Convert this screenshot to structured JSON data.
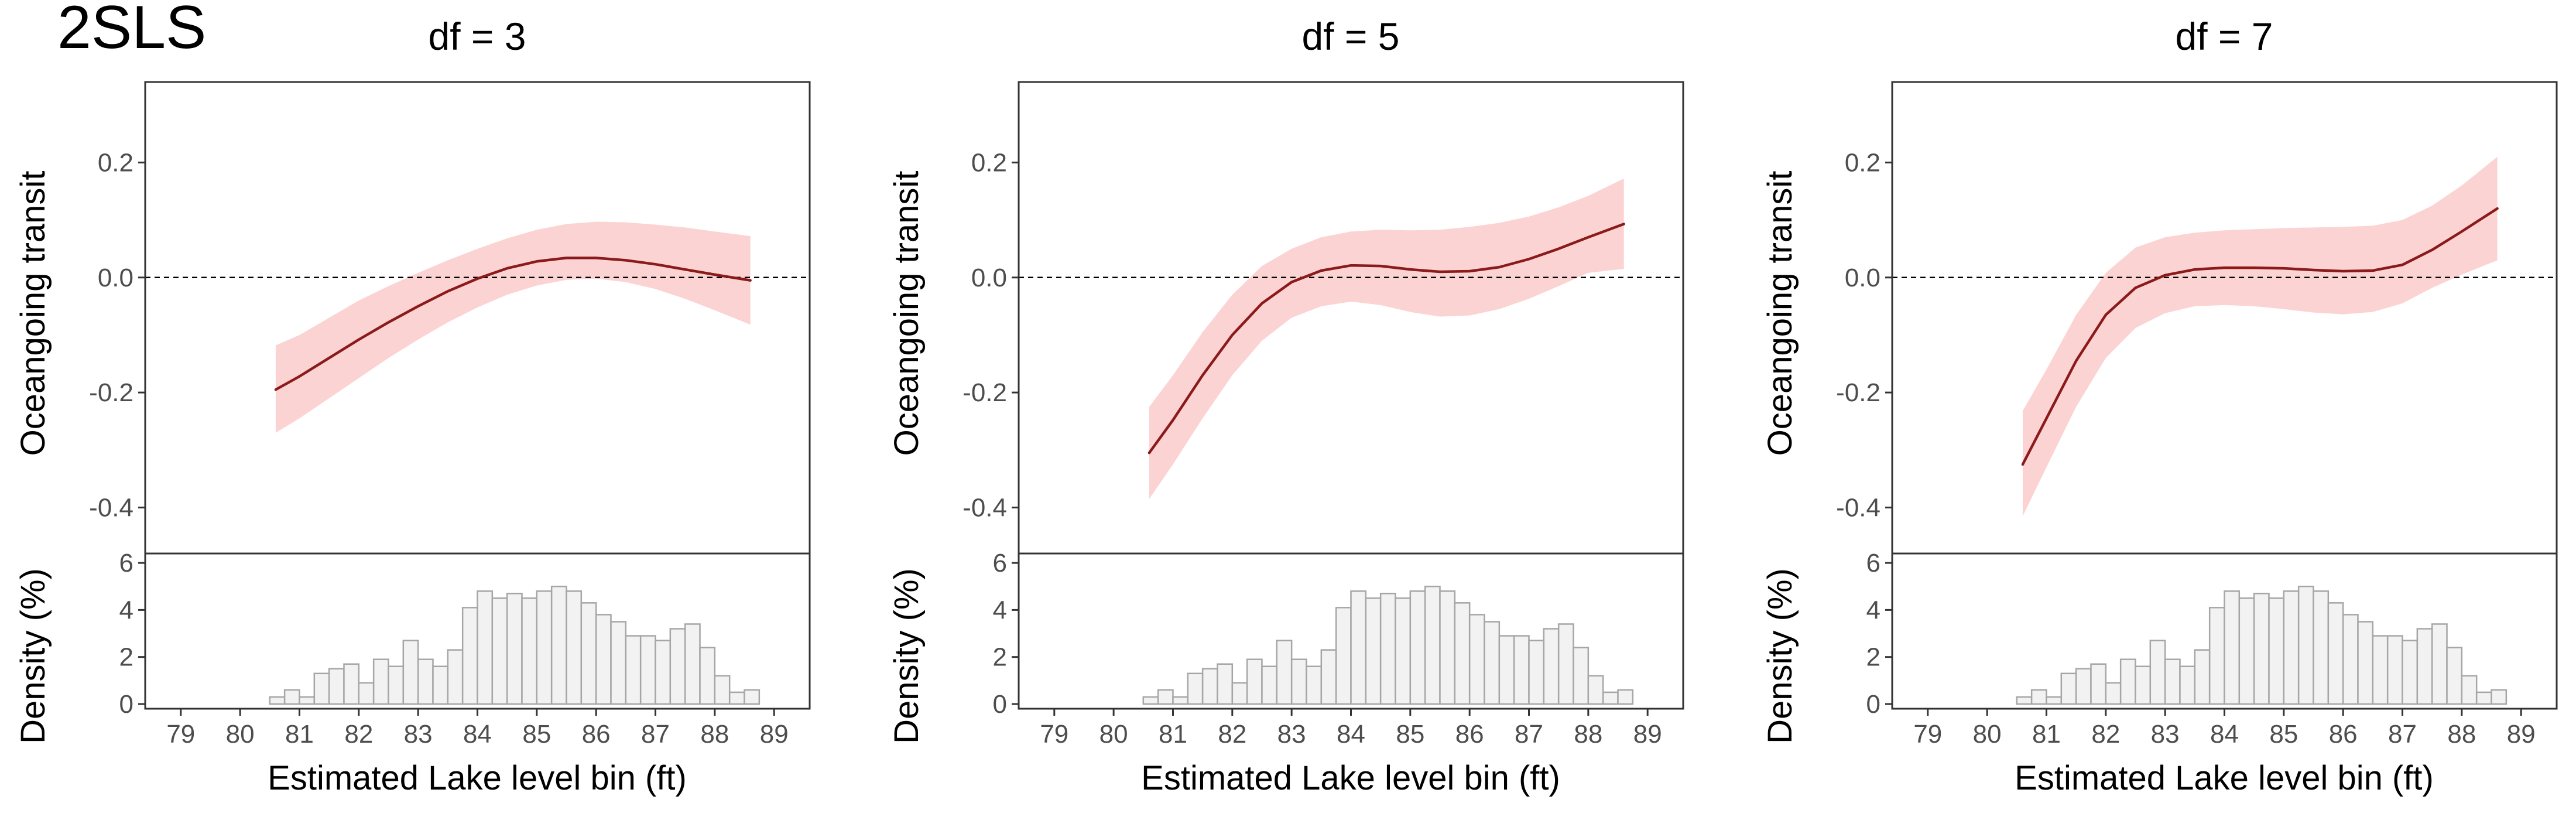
{
  "figure_tag": "2SLS",
  "chart_data": [
    {
      "type": "line",
      "title": "df = 3",
      "ylabel": "Oceangoing transit",
      "xlabel": "Estimated Lake level bin (ft)",
      "xlim": [
        78.4,
        89.6
      ],
      "ylim": [
        -0.48,
        0.34
      ],
      "y_ticks": [
        0.2,
        0.0,
        -0.2,
        -0.4
      ],
      "y_tick_labels": [
        "0.2",
        "0.0",
        "-0.2",
        "-0.4"
      ],
      "x_ticks": [
        79,
        80,
        81,
        82,
        83,
        84,
        85,
        86,
        87,
        88,
        89
      ],
      "reference_line": 0,
      "line_color": "#8b1a1a",
      "band_color": "#fcd3d3",
      "x": [
        80.6,
        81.0,
        81.5,
        82.0,
        82.5,
        83.0,
        83.5,
        84.0,
        84.5,
        85.0,
        85.5,
        86.0,
        86.5,
        87.0,
        87.5,
        88.0,
        88.6
      ],
      "fit": [
        -0.195,
        -0.172,
        -0.14,
        -0.108,
        -0.078,
        -0.05,
        -0.024,
        -0.002,
        0.016,
        0.028,
        0.034,
        0.034,
        0.03,
        0.023,
        0.014,
        0.005,
        -0.005
      ],
      "lower": [
        -0.27,
        -0.245,
        -0.21,
        -0.175,
        -0.14,
        -0.108,
        -0.078,
        -0.052,
        -0.03,
        -0.014,
        -0.004,
        -0.002,
        -0.008,
        -0.02,
        -0.037,
        -0.057,
        -0.082
      ],
      "upper": [
        -0.118,
        -0.1,
        -0.07,
        -0.04,
        -0.015,
        0.008,
        0.03,
        0.05,
        0.068,
        0.083,
        0.093,
        0.097,
        0.096,
        0.092,
        0.087,
        0.08,
        0.072
      ],
      "density": {
        "ylabel": "Density (%)",
        "ylim": [
          0,
          6.4
        ],
        "y_ticks": [
          0,
          2,
          4,
          6
        ],
        "bin_width": 0.25,
        "bin_starts": [
          80.5,
          80.75,
          81.0,
          81.25,
          81.5,
          81.75,
          82.0,
          82.25,
          82.5,
          82.75,
          83.0,
          83.25,
          83.5,
          83.75,
          84.0,
          84.25,
          84.5,
          84.75,
          85.0,
          85.25,
          85.5,
          85.75,
          86.0,
          86.25,
          86.5,
          86.75,
          87.0,
          87.25,
          87.5,
          87.75,
          88.0,
          88.25,
          88.5
        ],
        "values": [
          0.3,
          0.6,
          0.3,
          1.3,
          1.5,
          1.7,
          0.9,
          1.9,
          1.6,
          2.7,
          1.9,
          1.6,
          2.3,
          4.1,
          4.8,
          4.5,
          4.7,
          4.5,
          4.8,
          5.0,
          4.8,
          4.3,
          3.8,
          3.5,
          2.9,
          2.9,
          2.7,
          3.2,
          3.4,
          2.4,
          1.2,
          0.5,
          0.6
        ]
      }
    },
    {
      "type": "line",
      "title": "df = 5",
      "ylabel": "Oceangoing transit",
      "xlabel": "Estimated Lake level bin (ft)",
      "xlim": [
        78.4,
        89.6
      ],
      "ylim": [
        -0.48,
        0.34
      ],
      "y_ticks": [
        0.2,
        0.0,
        -0.2,
        -0.4
      ],
      "y_tick_labels": [
        "0.2",
        "0.0",
        "-0.2",
        "-0.4"
      ],
      "x_ticks": [
        79,
        80,
        81,
        82,
        83,
        84,
        85,
        86,
        87,
        88,
        89
      ],
      "reference_line": 0,
      "line_color": "#8b1a1a",
      "band_color": "#fcd3d3",
      "x": [
        80.6,
        81.0,
        81.5,
        82.0,
        82.5,
        83.0,
        83.5,
        84.0,
        84.5,
        85.0,
        85.5,
        86.0,
        86.5,
        87.0,
        87.5,
        88.0,
        88.6
      ],
      "fit": [
        -0.305,
        -0.248,
        -0.17,
        -0.1,
        -0.045,
        -0.008,
        0.012,
        0.021,
        0.02,
        0.014,
        0.01,
        0.011,
        0.018,
        0.032,
        0.05,
        0.07,
        0.093
      ],
      "lower": [
        -0.385,
        -0.325,
        -0.245,
        -0.17,
        -0.11,
        -0.07,
        -0.05,
        -0.042,
        -0.048,
        -0.06,
        -0.068,
        -0.066,
        -0.055,
        -0.037,
        -0.015,
        0.008,
        0.015
      ],
      "upper": [
        -0.225,
        -0.17,
        -0.095,
        -0.03,
        0.02,
        0.05,
        0.07,
        0.08,
        0.083,
        0.082,
        0.083,
        0.088,
        0.095,
        0.106,
        0.122,
        0.142,
        0.172
      ],
      "density": {
        "ylabel": "Density (%)",
        "ylim": [
          0,
          6.4
        ],
        "y_ticks": [
          0,
          2,
          4,
          6
        ],
        "bin_width": 0.25,
        "bin_starts": [
          80.5,
          80.75,
          81.0,
          81.25,
          81.5,
          81.75,
          82.0,
          82.25,
          82.5,
          82.75,
          83.0,
          83.25,
          83.5,
          83.75,
          84.0,
          84.25,
          84.5,
          84.75,
          85.0,
          85.25,
          85.5,
          85.75,
          86.0,
          86.25,
          86.5,
          86.75,
          87.0,
          87.25,
          87.5,
          87.75,
          88.0,
          88.25,
          88.5
        ],
        "values": [
          0.3,
          0.6,
          0.3,
          1.3,
          1.5,
          1.7,
          0.9,
          1.9,
          1.6,
          2.7,
          1.9,
          1.6,
          2.3,
          4.1,
          4.8,
          4.5,
          4.7,
          4.5,
          4.8,
          5.0,
          4.8,
          4.3,
          3.8,
          3.5,
          2.9,
          2.9,
          2.7,
          3.2,
          3.4,
          2.4,
          1.2,
          0.5,
          0.6
        ]
      }
    },
    {
      "type": "line",
      "title": "df = 7",
      "ylabel": "Oceangoing transit",
      "xlabel": "Estimated Lake level bin (ft)",
      "xlim": [
        78.4,
        89.6
      ],
      "ylim": [
        -0.48,
        0.34
      ],
      "y_ticks": [
        0.2,
        0.0,
        -0.2,
        -0.4
      ],
      "y_tick_labels": [
        "0.2",
        "0.0",
        "-0.2",
        "-0.4"
      ],
      "x_ticks": [
        79,
        80,
        81,
        82,
        83,
        84,
        85,
        86,
        87,
        88,
        89
      ],
      "reference_line": 0,
      "line_color": "#8b1a1a",
      "band_color": "#fcd3d3",
      "x": [
        80.6,
        81.0,
        81.5,
        82.0,
        82.5,
        83.0,
        83.5,
        84.0,
        84.5,
        85.0,
        85.5,
        86.0,
        86.5,
        87.0,
        87.5,
        88.0,
        88.6
      ],
      "fit": [
        -0.325,
        -0.245,
        -0.145,
        -0.065,
        -0.018,
        0.004,
        0.014,
        0.017,
        0.017,
        0.016,
        0.013,
        0.011,
        0.012,
        0.022,
        0.048,
        0.08,
        0.12
      ],
      "lower": [
        -0.415,
        -0.33,
        -0.225,
        -0.14,
        -0.088,
        -0.062,
        -0.05,
        -0.048,
        -0.05,
        -0.055,
        -0.061,
        -0.064,
        -0.06,
        -0.045,
        -0.018,
        0.005,
        0.03
      ],
      "upper": [
        -0.232,
        -0.16,
        -0.065,
        0.008,
        0.052,
        0.07,
        0.078,
        0.082,
        0.084,
        0.086,
        0.087,
        0.088,
        0.09,
        0.1,
        0.125,
        0.16,
        0.21
      ],
      "density": {
        "ylabel": "Density (%)",
        "ylim": [
          0,
          6.4
        ],
        "y_ticks": [
          0,
          2,
          4,
          6
        ],
        "bin_width": 0.25,
        "bin_starts": [
          80.5,
          80.75,
          81.0,
          81.25,
          81.5,
          81.75,
          82.0,
          82.25,
          82.5,
          82.75,
          83.0,
          83.25,
          83.5,
          83.75,
          84.0,
          84.25,
          84.5,
          84.75,
          85.0,
          85.25,
          85.5,
          85.75,
          86.0,
          86.25,
          86.5,
          86.75,
          87.0,
          87.25,
          87.5,
          87.75,
          88.0,
          88.25,
          88.5
        ],
        "values": [
          0.3,
          0.6,
          0.3,
          1.3,
          1.5,
          1.7,
          0.9,
          1.9,
          1.6,
          2.7,
          1.9,
          1.6,
          2.3,
          4.1,
          4.8,
          4.5,
          4.7,
          4.5,
          4.8,
          5.0,
          4.8,
          4.3,
          3.8,
          3.5,
          2.9,
          2.9,
          2.7,
          3.2,
          3.4,
          2.4,
          1.2,
          0.5,
          0.6
        ]
      }
    }
  ]
}
